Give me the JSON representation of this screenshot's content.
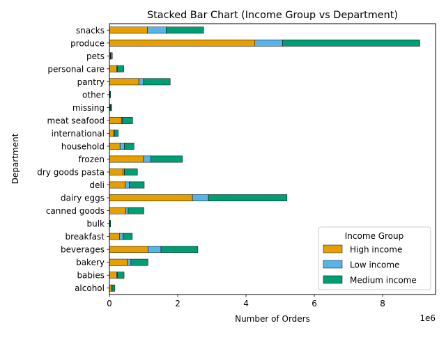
{
  "chart_data": {
    "type": "bar",
    "orientation": "horizontal",
    "stacked": true,
    "title": "Stacked Bar Chart (Income Group vs Department)",
    "xlabel": "Number of Orders",
    "ylabel": "Department",
    "x_offset_label": "1e6",
    "x_tick_labels": [
      "0",
      "2",
      "4",
      "6",
      "8"
    ],
    "xlim": [
      0,
      9.55
    ],
    "x_units": "millions of orders",
    "grid": false,
    "categories": [
      "alcohol",
      "babies",
      "bakery",
      "beverages",
      "breakfast",
      "bulk",
      "canned goods",
      "dairy eggs",
      "deli",
      "dry goods pasta",
      "frozen",
      "household",
      "international",
      "meat seafood",
      "missing",
      "other",
      "pantry",
      "personal care",
      "pets",
      "produce",
      "snacks"
    ],
    "series": [
      {
        "name": "High income",
        "color": "#E69F00",
        "values": [
          0.07,
          0.21,
          0.52,
          1.13,
          0.3,
          0.01,
          0.48,
          2.43,
          0.46,
          0.4,
          1.0,
          0.31,
          0.12,
          0.35,
          0.02,
          0.01,
          0.86,
          0.21,
          0.03,
          4.26,
          1.11
        ]
      },
      {
        "name": "Low income",
        "color": "#56B4E9",
        "values": [
          0.01,
          0.02,
          0.11,
          0.38,
          0.1,
          0.005,
          0.07,
          0.47,
          0.12,
          0.04,
          0.21,
          0.13,
          0.03,
          0.03,
          0.01,
          0.005,
          0.14,
          0.02,
          0.005,
          0.81,
          0.55
        ]
      },
      {
        "name": "Medium income",
        "color": "#009E73",
        "values": [
          0.08,
          0.2,
          0.5,
          1.08,
          0.27,
          0.02,
          0.46,
          2.3,
          0.44,
          0.38,
          0.93,
          0.28,
          0.11,
          0.3,
          0.04,
          0.02,
          0.78,
          0.19,
          0.05,
          4.02,
          1.1
        ]
      }
    ],
    "legend": {
      "title": "Income Group",
      "placement": "lower-right"
    }
  }
}
